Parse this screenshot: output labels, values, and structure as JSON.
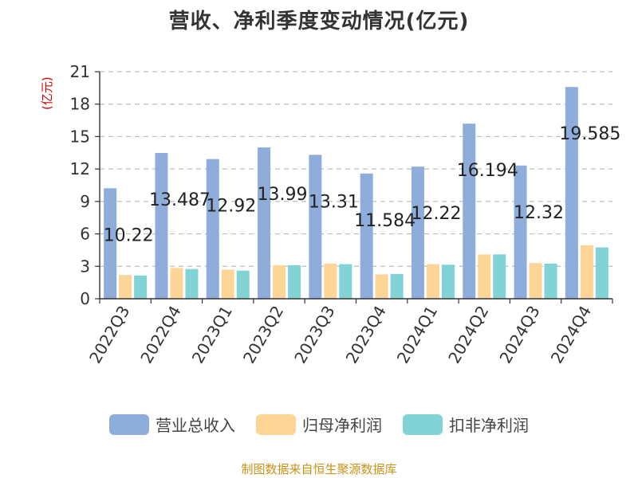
{
  "title": "营收、净利季度变动情况(亿元)",
  "unit": "(亿元)",
  "source": "制图数据来自恒生聚源数据库",
  "chart_data": {
    "type": "bar",
    "categories": [
      "2022Q3",
      "2022Q4",
      "2023Q1",
      "2023Q2",
      "2023Q3",
      "2023Q4",
      "2024Q1",
      "2024Q2",
      "2024Q3",
      "2024Q4"
    ],
    "ylim": [
      0,
      21
    ],
    "yticks": [
      0,
      3,
      6,
      9,
      12,
      15,
      18,
      21
    ],
    "grid": true,
    "legend_position": "bottom",
    "series": [
      {
        "name": "营业总收入",
        "color": "#8eadda",
        "values": [
          10.22,
          13.487,
          12.92,
          13.99,
          13.31,
          11.584,
          12.22,
          16.194,
          12.32,
          19.585
        ],
        "labels": [
          "10.22",
          "13.487",
          "12.92",
          "13.99",
          "13.31",
          "11.584",
          "12.22",
          "16.194",
          "12.32",
          "19.585"
        ]
      },
      {
        "name": "归母净利润",
        "color": "#fdd596",
        "values": [
          2.2,
          2.85,
          2.7,
          3.1,
          3.25,
          2.25,
          3.2,
          4.1,
          3.3,
          4.95
        ]
      },
      {
        "name": "扣非净利润",
        "color": "#82d3d6",
        "values": [
          2.15,
          2.75,
          2.6,
          3.1,
          3.2,
          2.3,
          3.15,
          4.1,
          3.25,
          4.75
        ]
      }
    ]
  }
}
